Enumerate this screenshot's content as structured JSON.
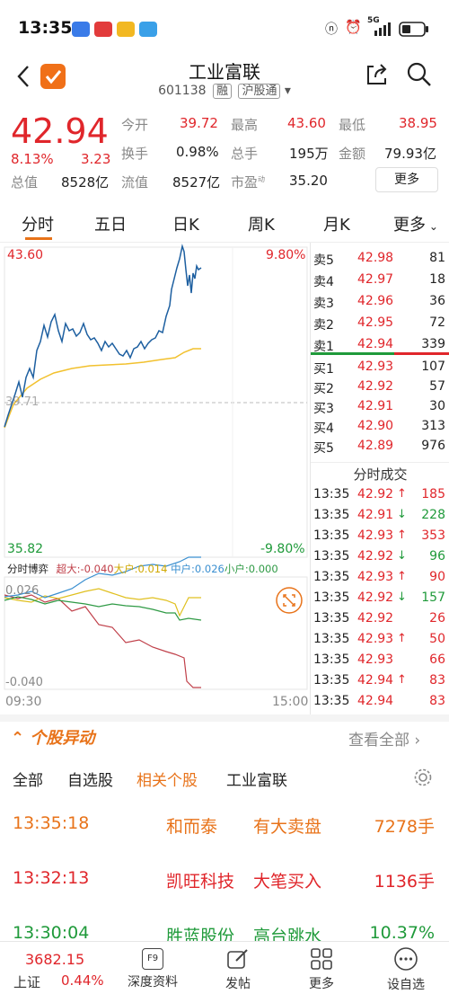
{
  "status_bar": {
    "time": "13:35",
    "network": "5G"
  },
  "header": {
    "title": "工业富联",
    "code": "601138",
    "tag1": "融",
    "tag2": "沪股通"
  },
  "quote": {
    "price": "42.94",
    "change_pct": "8.13%",
    "change": "3.23",
    "open_label": "今开",
    "open": "39.72",
    "high_label": "最高",
    "high": "43.60",
    "low_label": "最低",
    "low": "38.95",
    "turnover_label": "换手",
    "turnover": "0.98%",
    "volume_label": "总手",
    "volume": "195万",
    "amount_label": "金额",
    "amount": "79.93亿",
    "mktcap_label": "总值",
    "mktcap": "8528亿",
    "float_label": "流值",
    "float": "8527亿",
    "pe_label": "市盈",
    "pe_sup": "动",
    "pe": "35.20",
    "more_label": "更多"
  },
  "tabs": [
    "分时",
    "五日",
    "日K",
    "周K",
    "月K",
    "更多"
  ],
  "chart": {
    "top_price": "43.60",
    "top_pct": "9.80%",
    "mid_price": "39.71",
    "bot_price": "35.82",
    "bot_pct": "-9.80%",
    "flow_title": "分时博弈",
    "flow_big": "超大:-0.040",
    "flow_large": "大户:0.014",
    "flow_mid": "中户:0.026",
    "flow_small": "小户:0.000",
    "flow_top": "0.026",
    "flow_bot": "-0.040",
    "time_start": "09:30",
    "time_end": "15:00",
    "colors": {
      "price": "#1d5fa0",
      "avg": "#f2c12e",
      "big": "#c0404a",
      "large": "#e0c020",
      "mid": "#3a8fd0",
      "small": "#2f9a45"
    }
  },
  "order_book": {
    "asks": [
      {
        "label": "卖5",
        "price": "42.98",
        "vol": "81"
      },
      {
        "label": "卖4",
        "price": "42.97",
        "vol": "18"
      },
      {
        "label": "卖3",
        "price": "42.96",
        "vol": "36"
      },
      {
        "label": "卖2",
        "price": "42.95",
        "vol": "72"
      },
      {
        "label": "卖1",
        "price": "42.94",
        "vol": "339"
      }
    ],
    "bids": [
      {
        "label": "买1",
        "price": "42.93",
        "vol": "107"
      },
      {
        "label": "买2",
        "price": "42.92",
        "vol": "57"
      },
      {
        "label": "买3",
        "price": "42.91",
        "vol": "30"
      },
      {
        "label": "买4",
        "price": "42.90",
        "vol": "313"
      },
      {
        "label": "买5",
        "price": "42.89",
        "vol": "976"
      }
    ],
    "trades_title": "分时成交",
    "trades": [
      {
        "time": "13:35",
        "price": "42.92",
        "dir": "↑",
        "vol": "185",
        "vc": "red"
      },
      {
        "time": "13:35",
        "price": "42.91",
        "dir": "↓",
        "vol": "228",
        "vc": "green"
      },
      {
        "time": "13:35",
        "price": "42.93",
        "dir": "↑",
        "vol": "353",
        "vc": "red"
      },
      {
        "time": "13:35",
        "price": "42.92",
        "dir": "↓",
        "vol": "96",
        "vc": "green"
      },
      {
        "time": "13:35",
        "price": "42.93",
        "dir": "↑",
        "vol": "90",
        "vc": "red"
      },
      {
        "time": "13:35",
        "price": "42.92",
        "dir": "↓",
        "vol": "157",
        "vc": "green"
      },
      {
        "time": "13:35",
        "price": "42.92",
        "dir": "",
        "vol": "26",
        "vc": "red"
      },
      {
        "time": "13:35",
        "price": "42.93",
        "dir": "↑",
        "vol": "50",
        "vc": "red"
      },
      {
        "time": "13:35",
        "price": "42.93",
        "dir": "",
        "vol": "66",
        "vc": "red"
      },
      {
        "time": "13:35",
        "price": "42.94",
        "dir": "↑",
        "vol": "83",
        "vc": "red"
      },
      {
        "time": "13:35",
        "price": "42.94",
        "dir": "",
        "vol": "83",
        "vc": "red"
      }
    ]
  },
  "movers": {
    "title": "个股异动",
    "view_all": "查看全部",
    "filters": [
      "全部",
      "自选股",
      "相关个股",
      "工业富联"
    ],
    "rows": [
      {
        "time": "13:35:18",
        "name": "和而泰",
        "event": "有大卖盘",
        "value": "7278手",
        "color": "orange"
      },
      {
        "time": "13:32:13",
        "name": "凯旺科技",
        "event": "大笔买入",
        "value": "1136手",
        "color": "red"
      },
      {
        "time": "13:30:04",
        "name": "胜蓝股份",
        "event": "高台跳水",
        "value": "10.37%",
        "color": "green"
      }
    ]
  },
  "nav": {
    "index_value": "3682.15",
    "index_name": "上证",
    "index_pct": "0.44%",
    "items": [
      "深度资料",
      "发帖",
      "更多",
      "设自选"
    ],
    "f9": "F9"
  }
}
